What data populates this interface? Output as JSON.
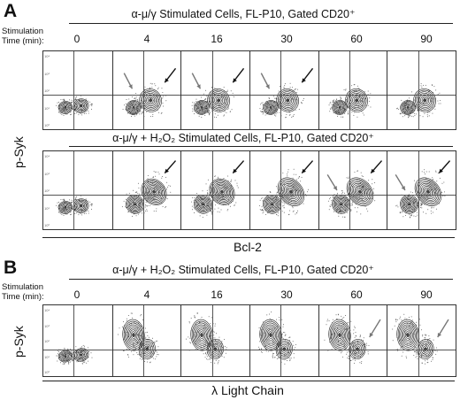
{
  "panel_a": {
    "letter": "A",
    "condition_top": "α-μ/γ Stimulated Cells, FL-P10, Gated CD20⁺",
    "condition_bottom": "α-μ/γ + H₂O₂ Stimulated Cells, FL-P10, Gated CD20⁺",
    "stim_label_line1": "Stimulation",
    "stim_label_line2": "Time (min):",
    "times": [
      "0",
      "4",
      "16",
      "30",
      "60",
      "90"
    ],
    "y_label": "p-Syk",
    "x_label": "Bcl-2"
  },
  "panel_b": {
    "letter": "B",
    "condition": "α-μ/γ + H₂O₂ Stimulated Cells, FL-P10, Gated CD20⁺",
    "stim_label_line1": "Stimulation",
    "stim_label_line2": "Time (min):",
    "times": [
      "0",
      "4",
      "16",
      "30",
      "60",
      "90"
    ],
    "y_label": "p-Syk",
    "x_label": "λ Light Chain"
  },
  "axis_ticks": [
    "10⁰",
    "10¹",
    "10²",
    "10³",
    "10⁴"
  ],
  "colors": {
    "black_arrow": "#111111",
    "gray_arrow": "#777777",
    "contour": "#222222",
    "dots": "#555555"
  },
  "chart_data": [
    {
      "type": "scatter",
      "title": "α-μ/γ Stimulated Cells, FL-P10, Gated CD20⁺",
      "xlabel": "Bcl-2",
      "ylabel": "p-Syk",
      "categories": [
        "0",
        "4",
        "16",
        "30",
        "60",
        "90"
      ],
      "arrows": [
        {
          "time": "4",
          "color": "gray"
        },
        {
          "time": "4",
          "color": "black"
        },
        {
          "time": "16",
          "color": "gray"
        },
        {
          "time": "16",
          "color": "black"
        },
        {
          "time": "30",
          "color": "gray"
        },
        {
          "time": "30",
          "color": "black"
        }
      ]
    },
    {
      "type": "scatter",
      "title": "α-μ/γ + H₂O₂ Stimulated Cells, FL-P10, Gated CD20⁺",
      "xlabel": "Bcl-2",
      "ylabel": "p-Syk",
      "categories": [
        "0",
        "4",
        "16",
        "30",
        "60",
        "90"
      ],
      "arrows": [
        {
          "time": "4",
          "color": "black"
        },
        {
          "time": "16",
          "color": "black"
        },
        {
          "time": "30",
          "color": "black"
        },
        {
          "time": "60",
          "color": "gray"
        },
        {
          "time": "60",
          "color": "black"
        },
        {
          "time": "90",
          "color": "gray"
        },
        {
          "time": "90",
          "color": "black"
        }
      ]
    },
    {
      "type": "scatter",
      "title": "α-μ/γ + H₂O₂ Stimulated Cells, FL-P10, Gated CD20⁺",
      "xlabel": "λ Light Chain",
      "ylabel": "p-Syk",
      "categories": [
        "0",
        "4",
        "16",
        "30",
        "60",
        "90"
      ],
      "arrows": [
        {
          "time": "60",
          "color": "gray"
        },
        {
          "time": "90",
          "color": "gray"
        }
      ]
    }
  ]
}
